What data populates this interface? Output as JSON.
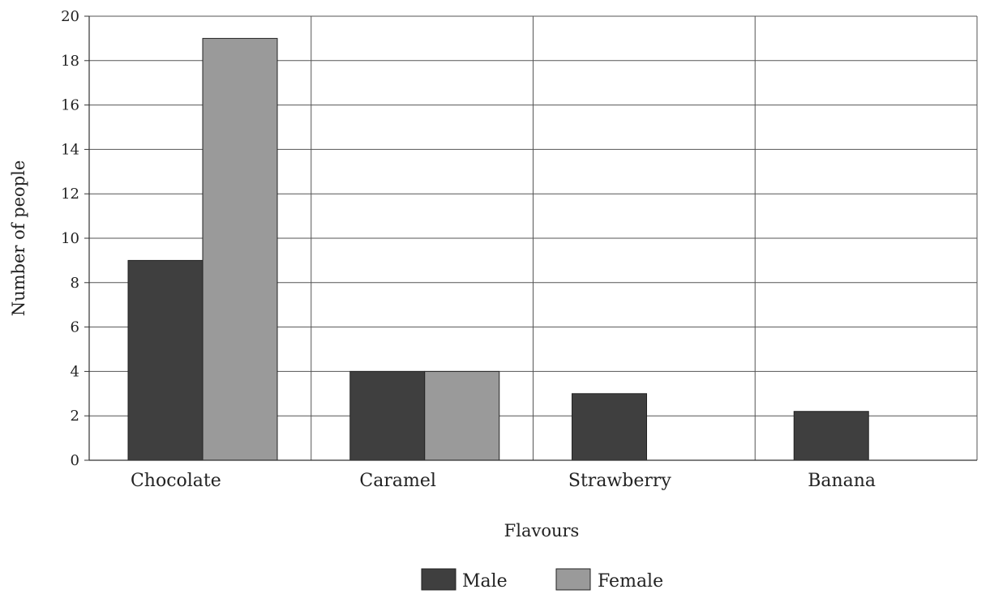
{
  "chart_data": {
    "type": "bar",
    "title": "",
    "xlabel": "Flavours",
    "ylabel": "Number of people",
    "categories": [
      "Chocolate",
      "Caramel",
      "Strawberry",
      "Banana"
    ],
    "series": [
      {
        "name": "Male",
        "values": [
          9,
          4,
          3,
          2.2
        ],
        "color": "#3f3f3f"
      },
      {
        "name": "Female",
        "values": [
          19,
          4,
          0,
          0
        ],
        "color": "#9a9a9a"
      }
    ],
    "ylim": [
      0,
      20
    ],
    "yticks": [
      0,
      2,
      4,
      6,
      8,
      10,
      12,
      14,
      16,
      18,
      20
    ],
    "grid": true,
    "legend_position": "bottom"
  }
}
